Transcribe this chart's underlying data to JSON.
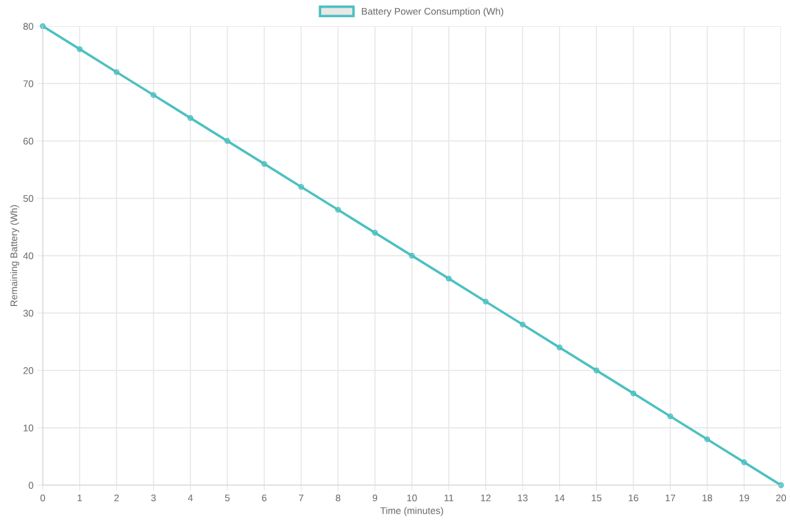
{
  "chart_data": {
    "type": "line",
    "xlabel": "Time (minutes)",
    "ylabel": "Remaining Battery (Wh)",
    "categories": [
      "0",
      "1",
      "2",
      "3",
      "4",
      "5",
      "6",
      "7",
      "8",
      "9",
      "10",
      "11",
      "12",
      "13",
      "14",
      "15",
      "16",
      "17",
      "18",
      "19",
      "20"
    ],
    "series": [
      {
        "name": "Battery Power Consumption (Wh)",
        "color": "#4bc0c0",
        "values": [
          80,
          76,
          72,
          68,
          64,
          60,
          56,
          52,
          48,
          44,
          40,
          36,
          32,
          28,
          24,
          20,
          16,
          12,
          8,
          4,
          0
        ]
      }
    ],
    "ylim": [
      0,
      80
    ],
    "yticks": [
      0,
      10,
      20,
      30,
      40,
      50,
      60,
      70,
      80
    ],
    "grid": true,
    "legend": "top",
    "marker": "circle",
    "line_style": "solid"
  }
}
